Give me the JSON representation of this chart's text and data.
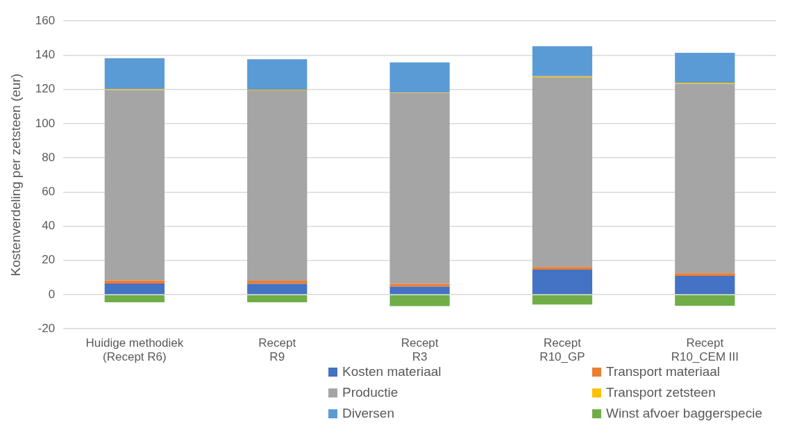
{
  "chart_data": {
    "type": "bar",
    "stacked": true,
    "ylabel": "Kostenverdeling per zetsteen (eur)",
    "categories": [
      "Huidige methodiek\n(Recept R6)",
      "Recept\nR9",
      "Recept\nR3",
      "Recept\nR10_GP",
      "Recept\nR10_CEM III"
    ],
    "series": [
      {
        "name": "Kosten materiaal",
        "color": "#4472c4",
        "values": [
          6.5,
          6.3,
          4.7,
          14.6,
          11
        ]
      },
      {
        "name": "Transport materiaal",
        "color": "#ed7d31",
        "values": [
          1.8,
          1.8,
          1.6,
          1.5,
          1.5
        ]
      },
      {
        "name": "Productie",
        "color": "#a5a5a5",
        "values": [
          111.4,
          111.4,
          111.6,
          111,
          110.8
        ]
      },
      {
        "name": "Transport zetsteen",
        "color": "#ffc000",
        "values": [
          0.5,
          0.4,
          0.3,
          0.6,
          0.6
        ]
      },
      {
        "name": "Diversen",
        "color": "#5b9bd5",
        "values": [
          18,
          17.7,
          17.6,
          17.5,
          17.5
        ]
      },
      {
        "name": "Winst afvoer baggerspecie",
        "color": "#70ad47",
        "values": [
          -4.5,
          -4.5,
          -6.7,
          -5.8,
          -6.5
        ]
      }
    ],
    "ylim": [
      -20,
      160
    ],
    "yticks": [
      -20,
      0,
      20,
      40,
      60,
      80,
      100,
      120,
      140,
      160
    ],
    "grid": "y",
    "legend": "bottom"
  }
}
